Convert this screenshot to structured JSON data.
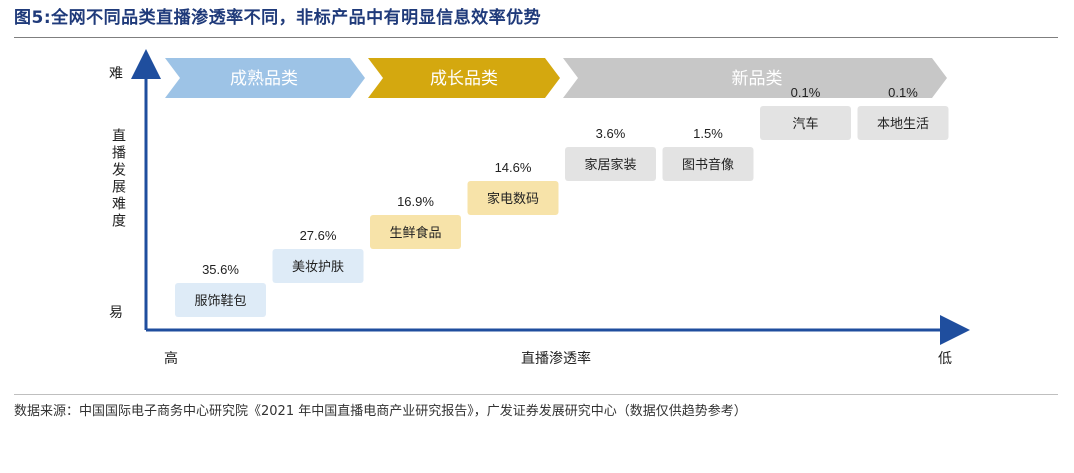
{
  "title": "图5:全网不同品类直播渗透率不同，非标产品中有明显信息效率优势",
  "stages": [
    {
      "label": "成熟品类",
      "color": "#9dc3e6",
      "text_color": "#ffffff"
    },
    {
      "label": "成长品类",
      "color": "#d4a80f",
      "text_color": "#ffffff"
    },
    {
      "label": "新品类",
      "color": "#c7c7c7",
      "text_color": "#ffffff"
    }
  ],
  "axes": {
    "y_label": "直播发展难度",
    "y_top": "难",
    "y_bottom": "易",
    "x_label": "直播渗透率",
    "x_left": "高",
    "x_right": "低"
  },
  "chart_data": {
    "type": "bar",
    "title": "",
    "xlabel": "直播渗透率",
    "ylabel": "直播发展难度",
    "categories": [
      "服饰鞋包",
      "美妆护肤",
      "生鲜食品",
      "家电数码",
      "家居家装",
      "图书音像",
      "汽车",
      "本地生活"
    ],
    "values": [
      35.6,
      27.6,
      16.9,
      14.6,
      3.6,
      1.5,
      0.1,
      0.1
    ],
    "value_labels": [
      "35.6%",
      "27.6%",
      "16.9%",
      "14.6%",
      "3.6%",
      "1.5%",
      "0.1%",
      "0.1%"
    ],
    "stage_of_category": [
      "成熟品类",
      "成熟品类",
      "成长品类",
      "成长品类",
      "新品类",
      "新品类",
      "新品类",
      "新品类"
    ],
    "difficulty_rank": [
      1,
      2,
      3,
      4,
      5,
      5,
      6,
      6
    ],
    "box_colors": [
      "#deebf7",
      "#deebf7",
      "#f7e3a9",
      "#f7e3a9",
      "#e3e3e3",
      "#e3e3e3",
      "#e3e3e3",
      "#e3e3e3"
    ],
    "unit": "%"
  },
  "source": "数据来源：中国国际电子商务中心研究院《2021 年中国直播电商产业研究报告》，广发证券发展研究中心（数据仅供趋势参考）"
}
